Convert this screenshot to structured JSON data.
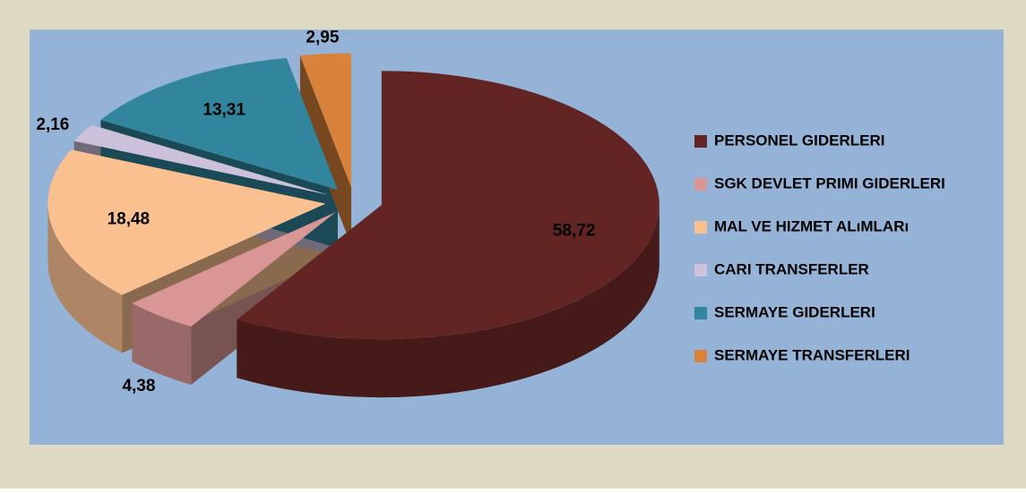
{
  "chart_data": {
    "type": "pie",
    "categories": [
      "PERSONEL GIDERLERI",
      "SGK DEVLET PRIMI GIDERLERI",
      "MAL VE HIZMET ALıMLARı",
      "CARI TRANSFERLER",
      "SERMAYE GIDERLERI",
      "SERMAYE TRANSFERLERI"
    ],
    "values": [
      58.72,
      4.38,
      18.48,
      2.16,
      13.31,
      2.95
    ],
    "value_labels": [
      "58,72",
      "4,38",
      "18,48",
      "2,16",
      "13,31",
      "2,95"
    ],
    "colors": [
      "#632523",
      "#d99694",
      "#fac090",
      "#ccc1da",
      "#31859c",
      "#d9823b"
    ],
    "legend": "right"
  }
}
